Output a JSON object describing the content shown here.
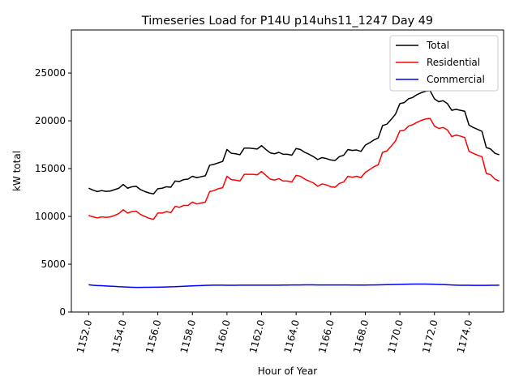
{
  "chart_data": {
    "type": "line",
    "title": "Timeseries Load for P14U p14uhs11_1247  Day 49",
    "xlabel": "Hour of Year",
    "ylabel": "kW total",
    "xlim": [
      1151.0,
      1176.0
    ],
    "ylim": [
      0,
      29500
    ],
    "grid": false,
    "legend_position": "top-right",
    "x_ticks": [
      1152.0,
      1154.0,
      1156.0,
      1158.0,
      1160.0,
      1162.0,
      1164.0,
      1166.0,
      1168.0,
      1170.0,
      1172.0,
      1174.0
    ],
    "x_tick_labels": [
      "1152.0",
      "1154.0",
      "1156.0",
      "1158.0",
      "1160.0",
      "1162.0",
      "1164.0",
      "1166.0",
      "1168.0",
      "1170.0",
      "1172.0",
      "1174.0"
    ],
    "y_ticks": [
      0,
      5000,
      10000,
      15000,
      20000,
      25000
    ],
    "y_tick_labels": [
      "0",
      "5000",
      "10000",
      "15000",
      "20000",
      "25000"
    ],
    "x": [
      1152.0,
      1152.25,
      1152.5,
      1152.75,
      1153.0,
      1153.25,
      1153.5,
      1153.75,
      1154.0,
      1154.25,
      1154.5,
      1154.75,
      1155.0,
      1155.25,
      1155.5,
      1155.75,
      1156.0,
      1156.25,
      1156.5,
      1156.75,
      1157.0,
      1157.25,
      1157.5,
      1157.75,
      1158.0,
      1158.25,
      1158.5,
      1158.75,
      1159.0,
      1159.25,
      1159.5,
      1159.75,
      1160.0,
      1160.25,
      1160.5,
      1160.75,
      1161.0,
      1161.25,
      1161.5,
      1161.75,
      1162.0,
      1162.25,
      1162.5,
      1162.75,
      1163.0,
      1163.25,
      1163.5,
      1163.75,
      1164.0,
      1164.25,
      1164.5,
      1164.75,
      1165.0,
      1165.25,
      1165.5,
      1165.75,
      1166.0,
      1166.25,
      1166.5,
      1166.75,
      1167.0,
      1167.25,
      1167.5,
      1167.75,
      1168.0,
      1168.25,
      1168.5,
      1168.75,
      1169.0,
      1169.25,
      1169.5,
      1169.75,
      1170.0,
      1170.25,
      1170.5,
      1170.75,
      1171.0,
      1171.25,
      1171.5,
      1171.75,
      1172.0,
      1172.25,
      1172.5,
      1172.75,
      1173.0,
      1173.25,
      1173.5,
      1173.75,
      1174.0,
      1174.25,
      1174.5,
      1174.75,
      1175.0,
      1175.25,
      1175.5,
      1175.75
    ],
    "series": [
      {
        "name": "Total",
        "color": "#000000",
        "values": [
          12950,
          12750,
          12600,
          12700,
          12620,
          12650,
          12800,
          12950,
          13350,
          12950,
          13100,
          13150,
          12800,
          12600,
          12450,
          12350,
          12900,
          12950,
          13100,
          13050,
          13700,
          13650,
          13850,
          13900,
          14200,
          14050,
          14150,
          14250,
          15350,
          15450,
          15600,
          15750,
          17000,
          16600,
          16550,
          16450,
          17150,
          17150,
          17100,
          17050,
          17400,
          17000,
          16650,
          16550,
          16700,
          16500,
          16500,
          16400,
          17100,
          17000,
          16700,
          16500,
          16250,
          15950,
          16150,
          16050,
          15900,
          15850,
          16250,
          16400,
          17000,
          16900,
          16950,
          16800,
          17450,
          17700,
          18000,
          18200,
          19500,
          19650,
          20150,
          20700,
          21800,
          21900,
          22300,
          22450,
          22750,
          22950,
          23100,
          23150,
          22300,
          22000,
          22100,
          21800,
          21100,
          21200,
          21100,
          21000,
          19550,
          19300,
          19100,
          18900,
          17200,
          17050,
          16600,
          16450
        ]
      },
      {
        "name": "Residential",
        "color": "#ff0000",
        "values": [
          10100,
          9950,
          9850,
          9950,
          9900,
          9950,
          10100,
          10300,
          10700,
          10350,
          10500,
          10550,
          10200,
          10000,
          9800,
          9700,
          10350,
          10350,
          10500,
          10400,
          11050,
          10950,
          11150,
          11150,
          11500,
          11300,
          11400,
          11500,
          12600,
          12700,
          12900,
          13000,
          14200,
          13850,
          13800,
          13700,
          14400,
          14400,
          14400,
          14350,
          14700,
          14300,
          13900,
          13800,
          13950,
          13700,
          13700,
          13600,
          14300,
          14200,
          13900,
          13700,
          13500,
          13150,
          13400,
          13300,
          13100,
          13050,
          13450,
          13600,
          14200,
          14100,
          14200,
          14050,
          14600,
          14900,
          15200,
          15400,
          16700,
          16850,
          17350,
          17900,
          18950,
          19000,
          19450,
          19600,
          19850,
          20050,
          20200,
          20250,
          19450,
          19200,
          19300,
          19050,
          18350,
          18500,
          18400,
          18250,
          16800,
          16600,
          16400,
          16250,
          14500,
          14350,
          13900,
          13700
        ]
      },
      {
        "name": "Commercial",
        "color": "#0000ff",
        "values": [
          2850,
          2800,
          2770,
          2750,
          2720,
          2700,
          2680,
          2650,
          2630,
          2610,
          2590,
          2570,
          2570,
          2580,
          2590,
          2600,
          2600,
          2610,
          2620,
          2640,
          2650,
          2670,
          2690,
          2710,
          2730,
          2750,
          2770,
          2790,
          2800,
          2810,
          2810,
          2810,
          2800,
          2800,
          2800,
          2810,
          2810,
          2810,
          2810,
          2810,
          2810,
          2810,
          2810,
          2810,
          2810,
          2815,
          2820,
          2825,
          2830,
          2830,
          2835,
          2835,
          2835,
          2830,
          2830,
          2830,
          2830,
          2830,
          2830,
          2830,
          2825,
          2820,
          2820,
          2820,
          2820,
          2825,
          2830,
          2840,
          2850,
          2860,
          2870,
          2880,
          2890,
          2900,
          2910,
          2920,
          2925,
          2930,
          2925,
          2915,
          2900,
          2885,
          2870,
          2850,
          2830,
          2810,
          2800,
          2795,
          2795,
          2790,
          2790,
          2790,
          2790,
          2795,
          2800,
          2805
        ]
      }
    ]
  }
}
